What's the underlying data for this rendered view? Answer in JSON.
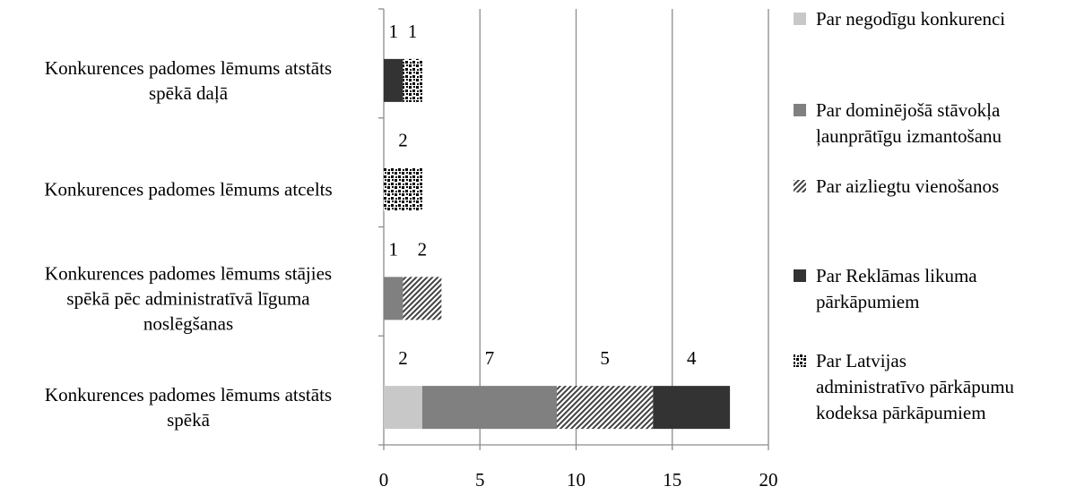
{
  "chart_data": {
    "type": "bar",
    "orientation": "horizontal",
    "stacked": true,
    "title": "",
    "xlabel": "",
    "ylabel": "",
    "xlim": [
      0,
      20
    ],
    "x_ticks": [
      0,
      5,
      10,
      15,
      20
    ],
    "grid": "vertical major gridlines",
    "legend_position": "right",
    "categories": [
      "Konkurences padomes lēmums atstāts spēkā",
      "Konkurences padomes lēmums stājies spēkā pēc administratīvā līguma noslēgšanas",
      "Konkurences padomes lēmums atcelts",
      "Konkurences padomes lēmums atstāts spēkā daļā"
    ],
    "category_label_lines": [
      [
        "Konkurences padomes lēmums atstāts",
        "spēkā"
      ],
      [
        "Konkurences padomes lēmums stājies",
        "spēkā pēc administratīvā līguma",
        "noslēgšanas"
      ],
      [
        "Konkurences padomes lēmums atcelts"
      ],
      [
        "Konkurences padomes lēmums atstāts",
        "spēkā daļā"
      ]
    ],
    "series": [
      {
        "name": "Par negodīgu konkurenci",
        "name_lines": [
          "Par negodīgu konkurenci"
        ],
        "values": [
          2,
          0,
          0,
          0
        ],
        "color": "#c8c8c8",
        "pattern": "solid"
      },
      {
        "name": "Par dominējošā stāvokļa ļaunprātīgu izmantošanu",
        "name_lines": [
          "Par dominējošā stāvokļa",
          "ļaunprātīgu izmantošanu"
        ],
        "values": [
          7,
          1,
          0,
          0
        ],
        "color": "#808080",
        "pattern": "solid"
      },
      {
        "name": "Par aizliegtu vienošanos",
        "name_lines": [
          "Par aizliegtu vienošanos"
        ],
        "values": [
          5,
          2,
          0,
          0
        ],
        "color": "#404040",
        "pattern": "diagonal"
      },
      {
        "name": "Par Reklāmas likuma pārkāpumiem",
        "name_lines": [
          "Par Reklāmas likuma",
          "pārkāpumiem"
        ],
        "values": [
          4,
          0,
          0,
          1
        ],
        "color": "#333333",
        "pattern": "solid"
      },
      {
        "name": "Par Latvijas administratīvo pārkāpumu kodeksa pārkāpumiem",
        "name_lines": [
          "Par Latvijas",
          "administratīvo pārkāpumu",
          "kodeksa pārkāpumiem"
        ],
        "values": [
          0,
          0,
          2,
          1
        ],
        "color": "#000000",
        "pattern": "checker"
      }
    ]
  }
}
